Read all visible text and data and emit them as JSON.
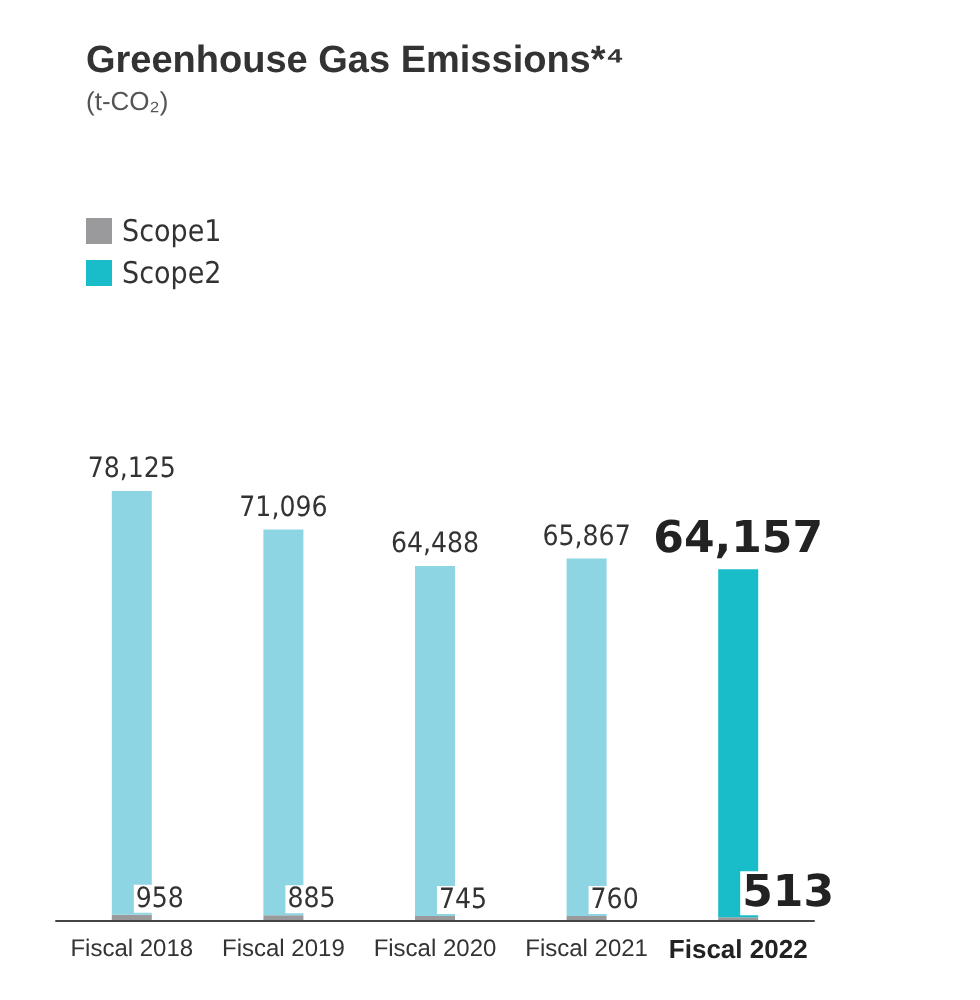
{
  "chart_data": {
    "type": "bar",
    "title": "Greenhouse Gas Emissions*⁴",
    "subtitle": "(t-CO₂)",
    "categories": [
      "Fiscal 2018",
      "Fiscal 2019",
      "Fiscal 2020",
      "Fiscal 2021",
      "Fiscal 2022"
    ],
    "stacked": true,
    "legend": "top left",
    "series": [
      {
        "name": "Scope1",
        "color": "#9a9a9c",
        "values": [
          958,
          885,
          745,
          760,
          513
        ],
        "value_labels": [
          "958",
          "885",
          "745",
          "760",
          "513"
        ]
      },
      {
        "name": "Scope2",
        "color": "#19bdc9",
        "colors": [
          "#8ed5e3",
          "#8ed5e3",
          "#8ed5e3",
          "#8ed5e3",
          "#19bdc9"
        ],
        "values": [
          78125,
          71096,
          64488,
          65867,
          64157
        ],
        "value_labels": [
          "78,125",
          "71,096",
          "64,488",
          "65,867",
          "64,157"
        ]
      }
    ]
  }
}
